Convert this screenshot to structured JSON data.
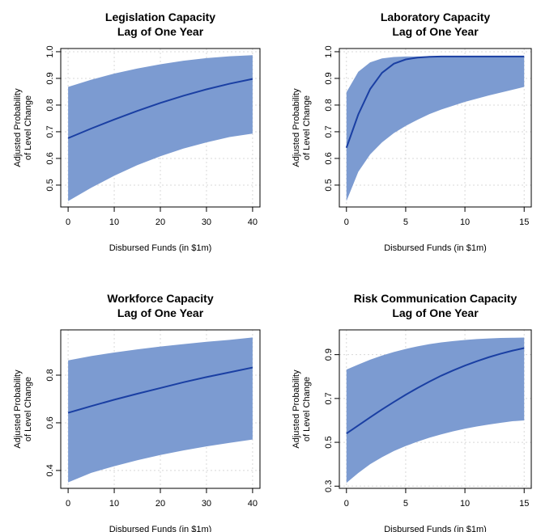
{
  "colors": {
    "band": "#7c9bd1",
    "line": "#1a3fa3",
    "grid": "#d8d8d8",
    "frame": "#000000"
  },
  "chart_data": [
    {
      "type": "line",
      "title": "Legislation Capacity",
      "subtitle": "Lag of One Year",
      "xlabel": "Disbursed Funds (in $1m)",
      "ylabel": "Adjusted Probability",
      "ylabel2": "of Level Change",
      "xlim": [
        -1.6,
        41.6
      ],
      "ylim": [
        0.418,
        1.012
      ],
      "xticks": [
        0,
        10,
        20,
        30,
        40
      ],
      "yticks": [
        0.5,
        0.6,
        0.7,
        0.8,
        0.9,
        1.0
      ],
      "ytick_labels": [
        "0.5",
        "0.6",
        "0.7",
        "0.8",
        "0.9",
        "1.0"
      ],
      "grid": true,
      "series": [
        {
          "x": [
            0,
            5,
            10,
            15,
            20,
            25,
            30,
            35,
            40
          ],
          "values": [
            0.676,
            0.712,
            0.746,
            0.778,
            0.808,
            0.835,
            0.859,
            0.88,
            0.898
          ]
        }
      ],
      "band": {
        "x": [
          0,
          5,
          10,
          15,
          20,
          25,
          30,
          35,
          40
        ],
        "lower": [
          0.44,
          0.49,
          0.535,
          0.575,
          0.608,
          0.637,
          0.66,
          0.68,
          0.693
        ],
        "upper": [
          0.868,
          0.895,
          0.918,
          0.937,
          0.953,
          0.966,
          0.976,
          0.983,
          0.987
        ]
      }
    },
    {
      "type": "line",
      "title": "Laboratory Capacity",
      "subtitle": "Lag of One Year",
      "xlabel": "Disbursed Funds (in $1m)",
      "ylabel": "Adjusted Probability",
      "ylabel2": "of Level Change",
      "xlim": [
        -0.6,
        15.6
      ],
      "ylim": [
        0.418,
        1.012
      ],
      "xticks": [
        0,
        5,
        10,
        15
      ],
      "yticks": [
        0.5,
        0.6,
        0.7,
        0.8,
        0.9,
        1.0
      ],
      "ytick_labels": [
        "0.5",
        "0.6",
        "0.7",
        "0.8",
        "0.9",
        "1.0"
      ],
      "grid": true,
      "series": [
        {
          "x": [
            0,
            1,
            2,
            3,
            4,
            5,
            6,
            7,
            8,
            10,
            12,
            15
          ],
          "values": [
            0.64,
            0.765,
            0.86,
            0.921,
            0.955,
            0.971,
            0.978,
            0.981,
            0.982,
            0.982,
            0.982,
            0.982
          ]
        }
      ],
      "band": {
        "x": [
          0,
          1,
          2,
          3,
          4,
          5,
          6,
          7,
          8,
          10,
          12,
          15
        ],
        "lower": [
          0.44,
          0.55,
          0.615,
          0.66,
          0.695,
          0.722,
          0.745,
          0.766,
          0.783,
          0.812,
          0.836,
          0.868
        ],
        "upper": [
          0.848,
          0.925,
          0.96,
          0.975,
          0.98,
          0.982,
          0.982,
          0.983,
          0.983,
          0.983,
          0.983,
          0.983
        ]
      }
    },
    {
      "type": "line",
      "title": "Workforce Capacity",
      "subtitle": "Lag of One Year",
      "xlabel": "Disbursed Funds (in $1m)",
      "ylabel": "Adjusted Probability",
      "ylabel2": "of Level Change",
      "xlim": [
        -1.6,
        41.6
      ],
      "ylim": [
        0.325,
        0.99
      ],
      "xticks": [
        0,
        10,
        20,
        30,
        40
      ],
      "yticks": [
        0.4,
        0.6,
        0.8
      ],
      "ytick_labels": [
        "0.4",
        "0.6",
        "0.8"
      ],
      "grid": true,
      "series": [
        {
          "x": [
            0,
            5,
            10,
            15,
            20,
            25,
            30,
            35,
            40
          ],
          "values": [
            0.642,
            0.67,
            0.697,
            0.722,
            0.746,
            0.77,
            0.792,
            0.812,
            0.832
          ]
        }
      ],
      "band": {
        "x": [
          0,
          5,
          10,
          15,
          20,
          25,
          30,
          35,
          40
        ],
        "lower": [
          0.35,
          0.39,
          0.418,
          0.443,
          0.465,
          0.484,
          0.501,
          0.516,
          0.53
        ],
        "upper": [
          0.862,
          0.88,
          0.895,
          0.908,
          0.92,
          0.93,
          0.94,
          0.948,
          0.958
        ]
      }
    },
    {
      "type": "line",
      "title": "Risk Communication Capacity",
      "subtitle": "Lag of One Year",
      "xlabel": "Disbursed Funds (in $1m)",
      "ylabel": "Adjusted Probability",
      "ylabel2": "of Level Change",
      "xlim": [
        -0.6,
        15.6
      ],
      "ylim": [
        0.29,
        1.013
      ],
      "xticks": [
        0,
        5,
        10,
        15
      ],
      "yticks": [
        0.3,
        0.5,
        0.7,
        0.9
      ],
      "ytick_labels": [
        "0.3",
        "0.5",
        "0.7",
        "0.9"
      ],
      "grid": true,
      "series": [
        {
          "x": [
            0,
            1,
            2,
            3,
            4,
            5,
            6,
            7,
            8,
            9,
            10,
            11,
            12,
            13,
            14,
            15
          ],
          "values": [
            0.54,
            0.577,
            0.614,
            0.65,
            0.684,
            0.717,
            0.748,
            0.777,
            0.804,
            0.828,
            0.85,
            0.87,
            0.888,
            0.904,
            0.918,
            0.93
          ]
        }
      ],
      "band": {
        "x": [
          0,
          1,
          2,
          3,
          4,
          5,
          6,
          7,
          8,
          9,
          10,
          11,
          12,
          13,
          14,
          15
        ],
        "lower": [
          0.315,
          0.36,
          0.4,
          0.432,
          0.46,
          0.483,
          0.503,
          0.521,
          0.536,
          0.55,
          0.562,
          0.572,
          0.581,
          0.589,
          0.596,
          0.6
        ],
        "upper": [
          0.832,
          0.855,
          0.877,
          0.896,
          0.912,
          0.926,
          0.938,
          0.948,
          0.956,
          0.962,
          0.967,
          0.971,
          0.974,
          0.976,
          0.977,
          0.978
        ]
      }
    }
  ]
}
